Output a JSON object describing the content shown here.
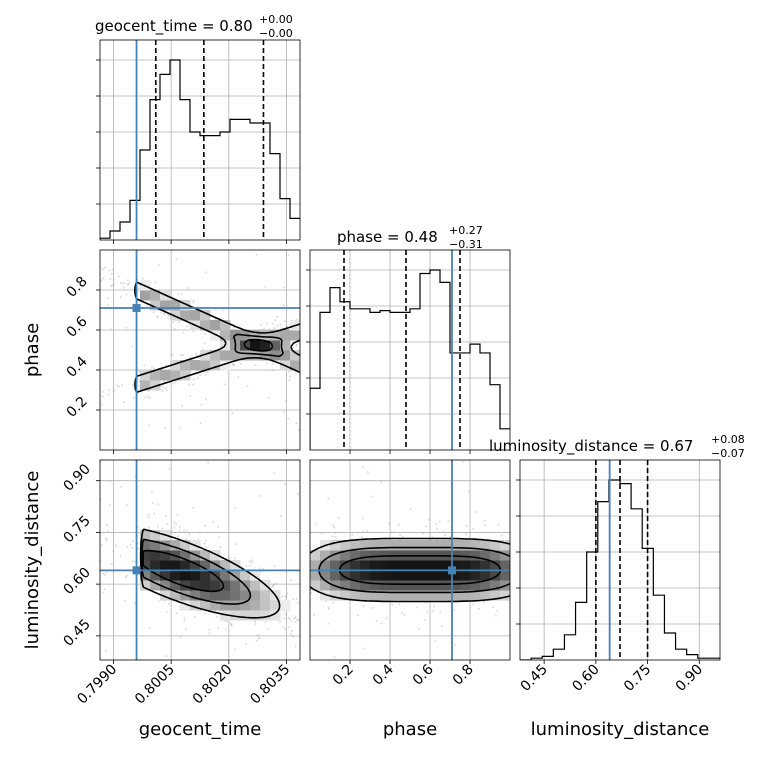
{
  "chart_data": {
    "type": "corner",
    "parameters": [
      {
        "name": "geocent_time",
        "range": [
          0.79865,
          0.80385
        ],
        "ticks": [
          0.799,
          0.8005,
          0.802,
          0.8035
        ],
        "tick_labels": [
          "0.7990",
          "0.8005",
          "0.8020",
          "0.8035"
        ],
        "truth": 0.7996,
        "quantiles": [
          0.8001,
          0.80135,
          0.8029
        ],
        "title": "geocent_time = 0.80",
        "title_plus": "+0.00",
        "title_minus": "−0.00",
        "hist_values": [
          0.01,
          0.05,
          0.1,
          0.22,
          0.5,
          0.78,
          0.92,
          1.0,
          0.78,
          0.6,
          0.58,
          0.58,
          0.6,
          0.67,
          0.67,
          0.65,
          0.65,
          0.48,
          0.23,
          0.12
        ]
      },
      {
        "name": "phase",
        "range": [
          0.0,
          1.0
        ],
        "ticks": [
          0.2,
          0.4,
          0.6,
          0.8
        ],
        "tick_labels": [
          "0.2",
          "0.4",
          "0.6",
          "0.8"
        ],
        "truth": 0.71,
        "quantiles": [
          0.17,
          0.48,
          0.75
        ],
        "title": "phase = 0.48",
        "title_plus": "+0.27",
        "title_minus": "−0.31",
        "hist_values": [
          0.35,
          0.78,
          0.92,
          0.84,
          0.8,
          0.8,
          0.78,
          0.79,
          0.78,
          0.78,
          0.8,
          1.0,
          1.02,
          0.95,
          0.55,
          0.55,
          0.6,
          0.55,
          0.37,
          0.12
        ]
      },
      {
        "name": "luminosity_distance",
        "range": [
          0.38,
          0.96
        ],
        "ticks": [
          0.45,
          0.6,
          0.75,
          0.9
        ],
        "tick_labels": [
          "0.45",
          "0.60",
          "0.75",
          "0.90"
        ],
        "truth": 0.64,
        "quantiles": [
          0.6,
          0.67,
          0.75
        ],
        "title": "luminosity_distance = 0.67",
        "title_plus": "+0.08",
        "title_minus": "−0.07",
        "hist_values": [
          0.0,
          0.01,
          0.02,
          0.06,
          0.14,
          0.32,
          0.6,
          0.88,
          1.0,
          0.98,
          0.84,
          0.62,
          0.36,
          0.15,
          0.06,
          0.03,
          0.01,
          0.01
        ]
      }
    ],
    "truth_color": "#4682b4",
    "quantile_levels": [
      0.16,
      0.5,
      0.84
    ],
    "grid": true
  }
}
